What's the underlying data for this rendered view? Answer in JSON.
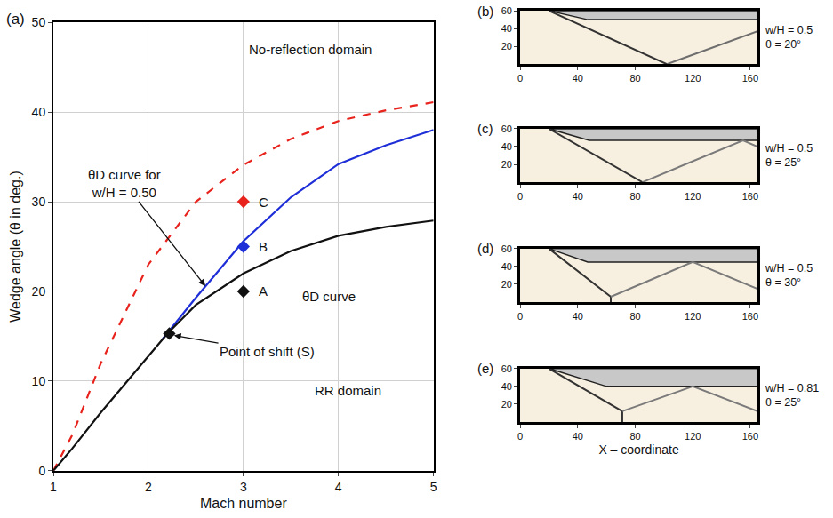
{
  "chart_data": [
    {
      "type": "line",
      "panel": "(a)",
      "xlabel": "Mach number",
      "ylabel": "Wedge angle (θ in deg.)",
      "xlim": [
        1,
        5
      ],
      "ylim": [
        0,
        50
      ],
      "xticks": [
        1,
        2,
        3,
        4,
        5
      ],
      "yticks": [
        0,
        10,
        20,
        30,
        40,
        50
      ],
      "grid": true,
      "series": [
        {
          "color": "#e8221c",
          "line_style": "dashed",
          "x": [
            1,
            1.2,
            1.5,
            2,
            2.5,
            3,
            3.5,
            4,
            4.5,
            5
          ],
          "values": [
            0,
            4,
            12,
            23,
            30,
            34.1,
            37,
            39,
            40.2,
            41.1
          ]
        },
        {
          "color": "#1f2fd8",
          "line_style": "solid",
          "x": [
            2.15,
            2.5,
            3,
            3.5,
            4,
            4.5,
            5
          ],
          "values": [
            14.7,
            19.3,
            25.6,
            30.5,
            34.2,
            36.3,
            38
          ]
        },
        {
          "color": "#111111",
          "line_style": "solid",
          "x": [
            1,
            1.2,
            1.5,
            2,
            2.2,
            2.5,
            3,
            3.5,
            4,
            4.5,
            5
          ],
          "values": [
            0,
            2.5,
            6.5,
            12.8,
            15.3,
            18.5,
            22,
            24.5,
            26.2,
            27.2,
            27.9
          ]
        },
        {
          "type": "scatter",
          "marker": "diamond",
          "color": "#111111",
          "x": [
            3,
            2.22
          ],
          "values": [
            20,
            15.3
          ]
        },
        {
          "type": "scatter",
          "marker": "diamond",
          "color": "#1f2fd8",
          "x": [
            3
          ],
          "values": [
            25
          ]
        },
        {
          "type": "scatter",
          "marker": "diamond",
          "color": "#e8221c",
          "x": [
            3
          ],
          "values": [
            30
          ]
        }
      ],
      "annotations": [
        {
          "text": "No-reflection domain",
          "x": 3.7,
          "y": 47
        },
        {
          "text": "RR domain",
          "x": 4.1,
          "y": 9
        },
        {
          "text": "θD curve",
          "x": 3.9,
          "y": 19.5
        },
        {
          "text": "A",
          "x": 3.14,
          "y": 20
        },
        {
          "text": "B",
          "x": 3.14,
          "y": 25
        },
        {
          "text": "C",
          "x": 3.14,
          "y": 30
        },
        {
          "text": "θD curve for w/H = 0.50",
          "x": 1.75,
          "y": 32,
          "arrow_to": [
            2.6,
            20.6
          ]
        },
        {
          "text": "Point of shift (S)",
          "x": 3.25,
          "y": 13.3,
          "arrow_to": [
            2.27,
            15.1
          ]
        }
      ]
    },
    {
      "type": "line",
      "panel": "(b)",
      "xlim": [
        0,
        165
      ],
      "ylim": [
        0,
        60
      ],
      "xticks": [
        0,
        40,
        80,
        120,
        160
      ],
      "yticks": [
        20,
        40,
        60
      ],
      "grid": false,
      "labels": [
        "w/H = 0.5",
        "θ = 20°"
      ],
      "series": [
        {
          "type": "area",
          "color": "#c8c8c8",
          "x": [
            20,
            47,
            165,
            165,
            20
          ],
          "values": [
            60,
            50,
            50,
            60,
            60
          ]
        },
        {
          "color": "#333333",
          "line_style": "solid",
          "x": [
            20,
            102
          ],
          "values": [
            60,
            0
          ]
        },
        {
          "color": "#6e6e6e",
          "line_style": "solid",
          "x": [
            102,
            165
          ],
          "values": [
            0,
            37
          ]
        }
      ]
    },
    {
      "type": "line",
      "panel": "(c)",
      "xlim": [
        0,
        165
      ],
      "ylim": [
        0,
        60
      ],
      "xticks": [
        0,
        40,
        80,
        120,
        160
      ],
      "yticks": [
        20,
        40,
        60
      ],
      "grid": false,
      "labels": [
        "w/H = 0.5",
        "θ = 25°"
      ],
      "series": [
        {
          "type": "area",
          "color": "#c8c8c8",
          "x": [
            20,
            48,
            165,
            165,
            20
          ],
          "values": [
            60,
            47,
            47,
            60,
            60
          ]
        },
        {
          "color": "#333333",
          "line_style": "solid",
          "x": [
            20,
            85
          ],
          "values": [
            60,
            0
          ]
        },
        {
          "color": "#7a7a7a",
          "line_style": "solid",
          "x": [
            85,
            155,
            165
          ],
          "values": [
            0,
            47,
            40
          ]
        }
      ]
    },
    {
      "type": "line",
      "panel": "(d)",
      "xlim": [
        0,
        165
      ],
      "ylim": [
        0,
        60
      ],
      "xticks": [
        0,
        40,
        80,
        120,
        160
      ],
      "yticks": [
        20,
        40,
        60
      ],
      "grid": false,
      "labels": [
        "w/H = 0.5",
        "θ = 30°"
      ],
      "series": [
        {
          "type": "area",
          "color": "#c8c8c8",
          "x": [
            20,
            47,
            165,
            165,
            20
          ],
          "values": [
            60,
            45,
            45,
            60,
            60
          ]
        },
        {
          "color": "#333333",
          "line_style": "solid",
          "x": [
            20,
            63,
            63
          ],
          "values": [
            60,
            6,
            0
          ]
        },
        {
          "color": "#7a7a7a",
          "line_style": "solid",
          "x": [
            63,
            120,
            165
          ],
          "values": [
            6,
            45,
            15
          ]
        }
      ]
    },
    {
      "type": "line",
      "panel": "(e)",
      "xlabel": "X – coordinate",
      "xlim": [
        0,
        165
      ],
      "ylim": [
        0,
        60
      ],
      "xticks": [
        0,
        40,
        80,
        120,
        160
      ],
      "yticks": [
        20,
        40,
        60
      ],
      "grid": false,
      "labels": [
        "w/H = 0.81",
        "θ = 25°"
      ],
      "series": [
        {
          "type": "area",
          "color": "#c8c8c8",
          "x": [
            20,
            60,
            165,
            165,
            20
          ],
          "values": [
            60,
            40,
            40,
            60,
            60
          ]
        },
        {
          "color": "#333333",
          "line_style": "solid",
          "x": [
            20,
            71,
            71
          ],
          "values": [
            60,
            12,
            0
          ]
        },
        {
          "color": "#7a7a7a",
          "line_style": "solid",
          "x": [
            71,
            120,
            165
          ],
          "values": [
            12,
            40,
            12
          ]
        }
      ]
    }
  ]
}
